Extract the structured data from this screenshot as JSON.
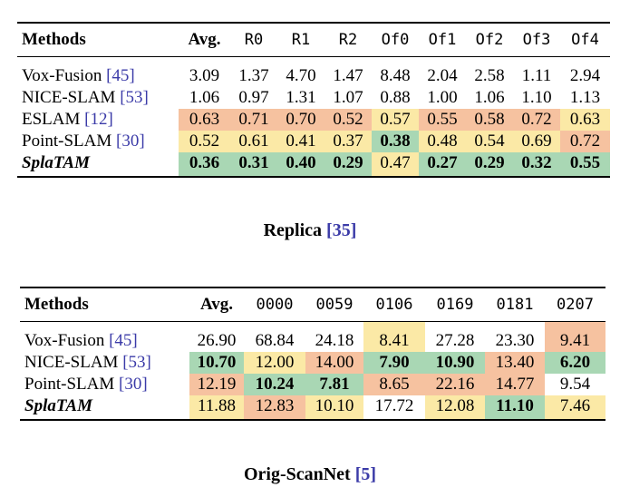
{
  "table1": {
    "headers": [
      "Methods",
      "Avg.",
      "R0",
      "R1",
      "R2",
      "Of0",
      "Of1",
      "Of2",
      "Of3",
      "Of4"
    ],
    "rows": [
      {
        "name": "Vox-Fusion",
        "ref": "[45]",
        "values": [
          "3.09",
          "1.37",
          "4.70",
          "1.47",
          "8.48",
          "2.04",
          "2.58",
          "1.11",
          "2.94"
        ]
      },
      {
        "name": "NICE-SLAM",
        "ref": "[53]",
        "values": [
          "1.06",
          "0.97",
          "1.31",
          "1.07",
          "0.88",
          "1.00",
          "1.06",
          "1.10",
          "1.13"
        ]
      },
      {
        "name": "ESLAM",
        "ref": "[12]",
        "values": [
          "0.63",
          "0.71",
          "0.70",
          "0.52",
          "0.57",
          "0.55",
          "0.58",
          "0.72",
          "0.63"
        ]
      },
      {
        "name": "Point-SLAM",
        "ref": "[30]",
        "values": [
          "0.52",
          "0.61",
          "0.41",
          "0.37",
          "0.38",
          "0.48",
          "0.54",
          "0.69",
          "0.72"
        ]
      },
      {
        "name": "SplaTAM",
        "ref": "",
        "values": [
          "0.36",
          "0.31",
          "0.40",
          "0.29",
          "0.47",
          "0.27",
          "0.29",
          "0.32",
          "0.55"
        ]
      }
    ],
    "caption_text": "Replica ",
    "caption_ref": "[35]"
  },
  "table2": {
    "headers": [
      "Methods",
      "Avg.",
      "0000",
      "0059",
      "0106",
      "0169",
      "0181",
      "0207"
    ],
    "rows": [
      {
        "name": "Vox-Fusion",
        "ref": "[45]",
        "values": [
          "26.90",
          "68.84",
          "24.18",
          "8.41",
          "27.28",
          "23.30",
          "9.41"
        ]
      },
      {
        "name": "NICE-SLAM",
        "ref": "[53]",
        "values": [
          "10.70",
          "12.00",
          "14.00",
          "7.90",
          "10.90",
          "13.40",
          "6.20"
        ]
      },
      {
        "name": "Point-SLAM",
        "ref": "[30]",
        "values": [
          "12.19",
          "10.24",
          "7.81",
          "8.65",
          "22.16",
          "14.77",
          "9.54"
        ]
      },
      {
        "name": "SplaTAM",
        "ref": "",
        "values": [
          "11.88",
          "12.83",
          "10.10",
          "17.72",
          "12.08",
          "11.10",
          "7.46"
        ]
      }
    ],
    "caption_text": "Orig-ScanNet ",
    "caption_ref": "[5]"
  },
  "colors": {
    "best": "#a9d7b4",
    "second": "#fbe9a6",
    "third": "#f6c2a0",
    "ref": "#3b3ba8"
  }
}
